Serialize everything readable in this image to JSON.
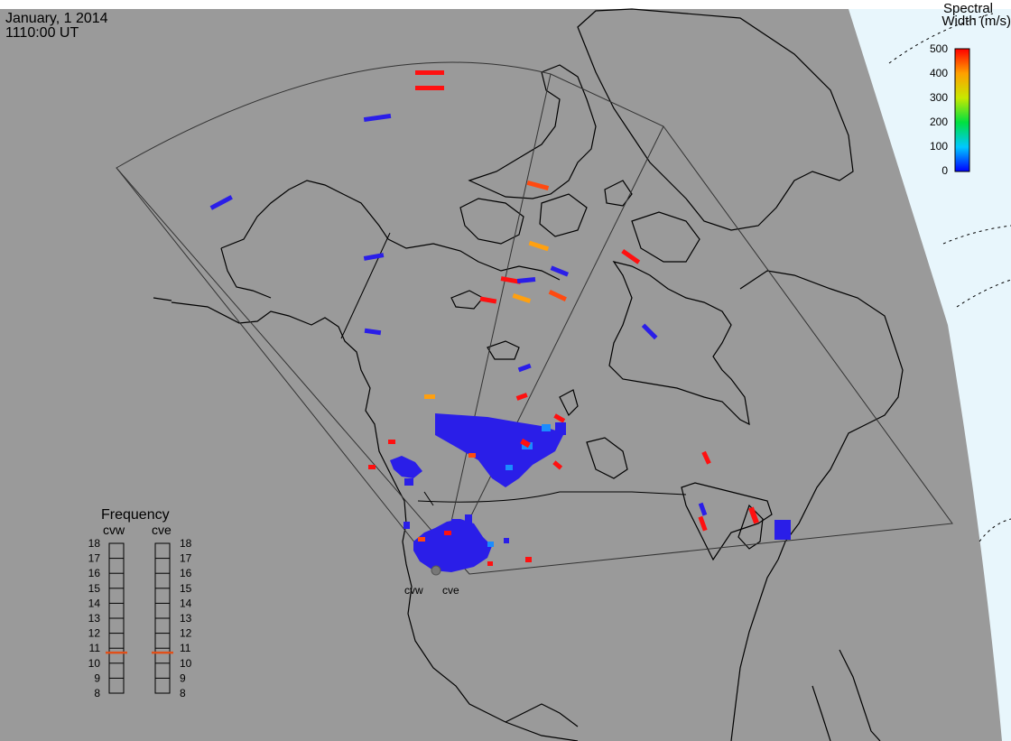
{
  "header": {
    "date": "January, 1 2014",
    "time": "1110:00 UT"
  },
  "colorbar": {
    "title_line1": "Spectral",
    "title_line2": "Width (m/s)",
    "ticks": [
      "500",
      "400",
      "300",
      "200",
      "100",
      "0"
    ],
    "min": 0,
    "max": 500
  },
  "radars": {
    "west": "cvw",
    "east": "cve"
  },
  "frequency": {
    "title": "Frequency",
    "left_label": "cvw",
    "right_label": "cve",
    "ticks": [
      "18",
      "17",
      "16",
      "15",
      "14",
      "13",
      "12",
      "11",
      "10",
      "9",
      "8"
    ],
    "cvw_value": 10.7,
    "cve_value": 10.7,
    "indicator_color": "#e0501a"
  },
  "colors": {
    "land": "#9a9a9a",
    "sea_region": "#e8f6fc",
    "blue": "#2a1ee8",
    "red": "#ff1010",
    "orange_red": "#ff4a10",
    "orange": "#ffa010",
    "sky": "#1a8cff"
  }
}
